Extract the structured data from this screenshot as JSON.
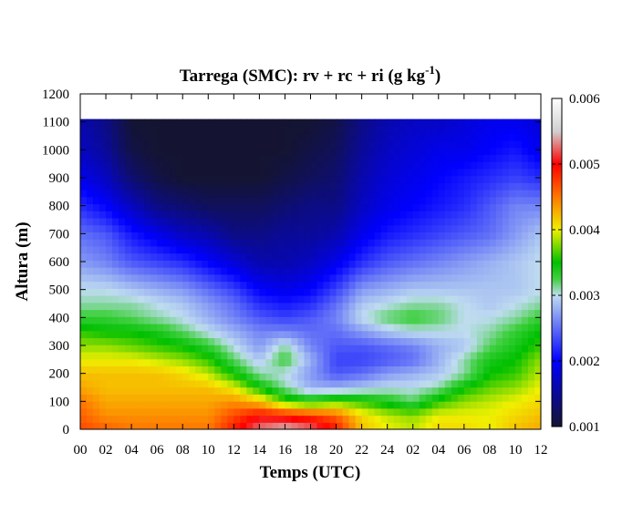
{
  "chart_data": {
    "type": "heatmap",
    "title": "Tarrega (SMC): rv + rc + ri (g kg",
    "title_superscript": "-1",
    "title_suffix": ")",
    "xlabel": "Temps (UTC)",
    "ylabel": "Altura (m)",
    "x_tick_labels": [
      "00",
      "02",
      "04",
      "06",
      "08",
      "10",
      "12",
      "14",
      "16",
      "18",
      "20",
      "22",
      "24",
      "02",
      "04",
      "06",
      "08",
      "10",
      "12"
    ],
    "y_ticks": [
      0,
      100,
      200,
      300,
      400,
      500,
      600,
      700,
      800,
      900,
      1000,
      1100,
      1200
    ],
    "xlim": [
      0,
      36
    ],
    "ylim": [
      0,
      1200
    ],
    "data_top_height": 1110,
    "colorbar": {
      "min": 0.001,
      "max": 0.006,
      "tick_labels": [
        "0.001",
        "0.002",
        "0.003",
        "0.004",
        "0.005",
        "0.006"
      ],
      "colormap": [
        "#141432",
        "#0000ff",
        "#bfdcf0",
        "#00c000",
        "#f0f000",
        "#ff7700",
        "#ff0000",
        "#d0d0d0",
        "#ffffff"
      ]
    },
    "approx_field": "moisture field estimated from the figure; values in colorbar units",
    "field_rows": [
      0,
      50,
      100,
      150,
      200,
      250,
      300,
      350,
      400,
      450,
      500,
      600,
      700,
      800,
      900,
      1000,
      1110
    ],
    "field_cols": [
      0,
      2,
      4,
      6,
      8,
      10,
      12,
      14,
      16,
      18,
      20,
      22,
      24,
      26,
      28,
      30,
      32,
      34,
      36
    ],
    "field": [
      [
        0.0047,
        0.0046,
        0.0045,
        0.0045,
        0.0045,
        0.0045,
        0.0049,
        0.0053,
        0.0055,
        0.0053,
        0.0049,
        0.0042,
        0.004,
        0.0039,
        0.0041,
        0.0041,
        0.004,
        0.0042,
        0.0043
      ],
      [
        0.0046,
        0.0044,
        0.0044,
        0.0044,
        0.0044,
        0.0044,
        0.0047,
        0.005,
        0.0049,
        0.0048,
        0.0046,
        0.0041,
        0.0039,
        0.0038,
        0.004,
        0.004,
        0.004,
        0.0041,
        0.0042
      ],
      [
        0.0045,
        0.0043,
        0.0043,
        0.0043,
        0.0043,
        0.0043,
        0.0044,
        0.0042,
        0.0037,
        0.0035,
        0.0037,
        0.0036,
        0.0034,
        0.0032,
        0.0036,
        0.0038,
        0.0039,
        0.004,
        0.0041
      ],
      [
        0.0043,
        0.0042,
        0.0042,
        0.0042,
        0.0042,
        0.0042,
        0.004,
        0.0035,
        0.0031,
        0.0028,
        0.0028,
        0.0029,
        0.003,
        0.003,
        0.0031,
        0.0035,
        0.0037,
        0.0038,
        0.004
      ],
      [
        0.0042,
        0.0042,
        0.0042,
        0.0042,
        0.0041,
        0.0039,
        0.0035,
        0.0031,
        0.003,
        0.0027,
        0.0024,
        0.0025,
        0.0027,
        0.0028,
        0.0029,
        0.0031,
        0.0035,
        0.0036,
        0.0039
      ],
      [
        0.004,
        0.004,
        0.004,
        0.0039,
        0.0038,
        0.0036,
        0.0032,
        0.0029,
        0.0033,
        0.0028,
        0.0023,
        0.0023,
        0.0024,
        0.0025,
        0.0028,
        0.0031,
        0.0034,
        0.0035,
        0.0038
      ],
      [
        0.0038,
        0.0038,
        0.0037,
        0.0036,
        0.0035,
        0.0033,
        0.003,
        0.0027,
        0.0031,
        0.0026,
        0.0024,
        0.0024,
        0.0025,
        0.0026,
        0.0028,
        0.0029,
        0.0032,
        0.0034,
        0.0036
      ],
      [
        0.0036,
        0.0035,
        0.0035,
        0.0034,
        0.0032,
        0.003,
        0.0028,
        0.0026,
        0.0026,
        0.0025,
        0.0025,
        0.0027,
        0.0029,
        0.003,
        0.003,
        0.003,
        0.0031,
        0.0033,
        0.0035
      ],
      [
        0.0033,
        0.0033,
        0.0032,
        0.0031,
        0.003,
        0.0028,
        0.0026,
        0.0024,
        0.0023,
        0.0024,
        0.0026,
        0.003,
        0.0032,
        0.0033,
        0.0032,
        0.003,
        0.003,
        0.0031,
        0.0033
      ],
      [
        0.0031,
        0.0031,
        0.0031,
        0.003,
        0.0029,
        0.0027,
        0.0025,
        0.0022,
        0.0021,
        0.0022,
        0.0025,
        0.0029,
        0.003,
        0.0031,
        0.0031,
        0.003,
        0.0029,
        0.003,
        0.0031
      ],
      [
        0.003,
        0.003,
        0.0029,
        0.0028,
        0.0027,
        0.0025,
        0.0023,
        0.002,
        0.0019,
        0.002,
        0.0023,
        0.0027,
        0.0028,
        0.0029,
        0.0029,
        0.0029,
        0.0029,
        0.0029,
        0.003
      ],
      [
        0.0027,
        0.0026,
        0.0024,
        0.0023,
        0.0022,
        0.002,
        0.0018,
        0.0016,
        0.0016,
        0.0017,
        0.0019,
        0.0022,
        0.0024,
        0.0025,
        0.0026,
        0.0027,
        0.0028,
        0.0029,
        0.003
      ],
      [
        0.0025,
        0.0024,
        0.0021,
        0.0019,
        0.0017,
        0.0016,
        0.0014,
        0.0014,
        0.0015,
        0.0015,
        0.0016,
        0.0019,
        0.0021,
        0.0022,
        0.0023,
        0.0024,
        0.0025,
        0.0027,
        0.0029
      ],
      [
        0.0022,
        0.002,
        0.0017,
        0.0014,
        0.0013,
        0.0012,
        0.0012,
        0.0012,
        0.0013,
        0.0014,
        0.0014,
        0.0017,
        0.0019,
        0.002,
        0.0021,
        0.0022,
        0.0024,
        0.0026,
        0.0026
      ],
      [
        0.0019,
        0.0017,
        0.0013,
        0.0011,
        0.001,
        0.001,
        0.001,
        0.001,
        0.0011,
        0.0012,
        0.0013,
        0.0016,
        0.0018,
        0.0019,
        0.002,
        0.0021,
        0.0022,
        0.0023,
        0.0022
      ],
      [
        0.0017,
        0.0015,
        0.0011,
        0.001,
        0.001,
        0.001,
        0.001,
        0.001,
        0.001,
        0.0011,
        0.0012,
        0.0015,
        0.0017,
        0.0018,
        0.0019,
        0.0019,
        0.002,
        0.0021,
        0.0019
      ],
      [
        0.0016,
        0.0014,
        0.001,
        0.001,
        0.001,
        0.001,
        0.001,
        0.001,
        0.001,
        0.001,
        0.0011,
        0.0014,
        0.0016,
        0.0017,
        0.0017,
        0.0018,
        0.0019,
        0.0019,
        0.0018
      ]
    ]
  }
}
